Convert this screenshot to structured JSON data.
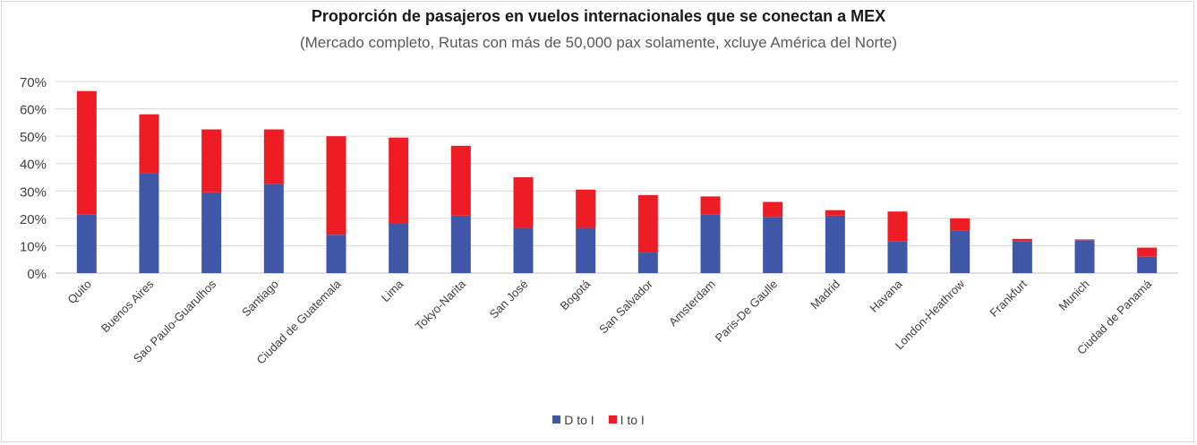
{
  "chart_data": {
    "type": "bar",
    "stacked": true,
    "title": "Proporción de pasajeros en vuelos internacionales que se conectan a MEX",
    "subtitle": "(Mercado completo, Rutas con más de 50,000 pax solamente, xcluye América del Norte)",
    "ylim": [
      0,
      70
    ],
    "yticks": [
      "0%",
      "10%",
      "20%",
      "30%",
      "40%",
      "50%",
      "60%",
      "70%"
    ],
    "grid": true,
    "legend_position": "bottom",
    "categories": [
      "Quito",
      "Buenos Aires",
      "Sao Paulo-Guarulhos",
      "Santiago",
      "Ciudad de Guatemala",
      "Lima",
      "Tokyo-Narita",
      "San José",
      "Bogotá",
      "San Salvador",
      "Amsterdam",
      "Paris-De Gaulle",
      "Madrid",
      "Havana",
      "London-Heathrow",
      "Frankfurt",
      "Munich",
      "Ciudad de Panamá"
    ],
    "series": [
      {
        "name": "D to I",
        "color": "#3f57a6",
        "values": [
          21.5,
          36.5,
          29.5,
          32.5,
          14,
          18,
          21,
          16.5,
          16.5,
          7.5,
          21.5,
          20.5,
          21,
          11.5,
          15.5,
          11.5,
          12,
          6
        ]
      },
      {
        "name": "I to I",
        "color": "#ee1c25",
        "values": [
          45,
          21.5,
          23,
          20,
          36,
          31.5,
          25.5,
          18.5,
          14,
          21,
          6.5,
          5.5,
          2,
          11,
          4.5,
          1,
          0.3,
          3.3
        ]
      }
    ]
  }
}
